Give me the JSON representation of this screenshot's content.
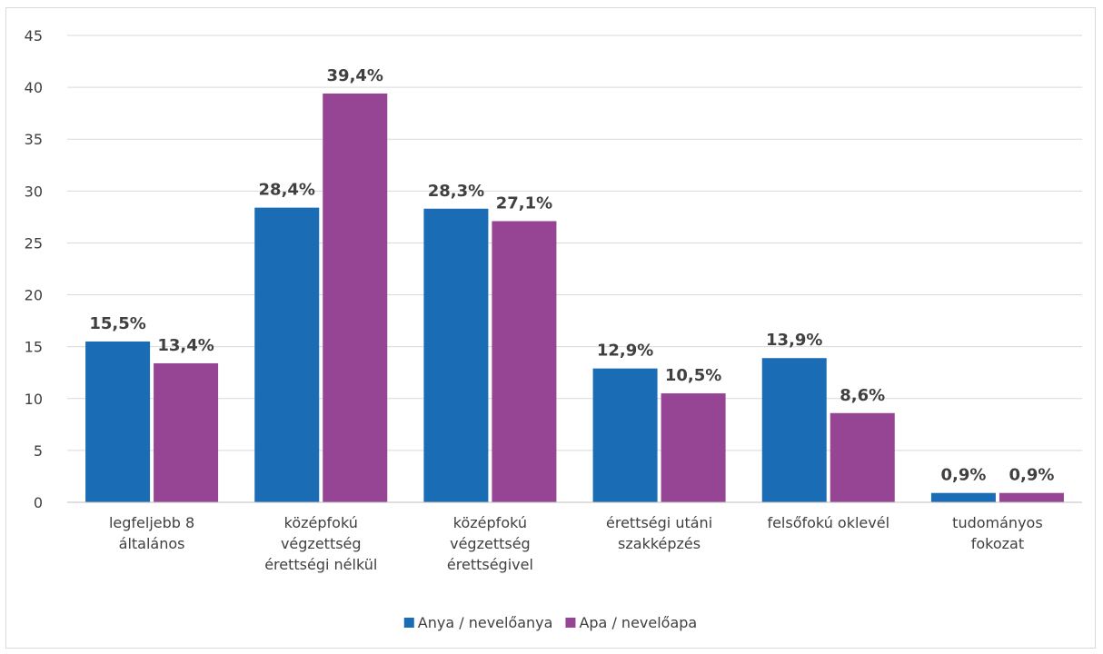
{
  "chart_data": {
    "type": "bar",
    "title": "",
    "xlabel": "",
    "ylabel": "",
    "ylim": [
      0,
      45
    ],
    "yticks": [
      0,
      5,
      10,
      15,
      20,
      25,
      30,
      35,
      40,
      45
    ],
    "grid": true,
    "legend_position": "bottom",
    "categories": [
      [
        "legfeljebb 8",
        "általános"
      ],
      [
        "középfokú",
        "végzettség",
        "érettségi nélkül"
      ],
      [
        "középfokú",
        "végzettség",
        "érettségivel"
      ],
      [
        "érettségi utáni",
        "szakképzés"
      ],
      [
        "felsőfokú oklevél"
      ],
      [
        "tudományos",
        "fokozat"
      ]
    ],
    "series": [
      {
        "name": "Anya / nevelőanya",
        "color": "#1a6cb5",
        "values": [
          15.5,
          28.4,
          28.3,
          12.9,
          13.9,
          0.9
        ],
        "labels": [
          "15,5%",
          "28,4%",
          "28,3%",
          "12,9%",
          "13,9%",
          "0,9%"
        ]
      },
      {
        "name": "Apa / nevelőapa",
        "color": "#954593",
        "values": [
          13.4,
          39.4,
          27.1,
          10.5,
          8.6,
          0.9
        ],
        "labels": [
          "13,4%",
          "39,4%",
          "27,1%",
          "10,5%",
          "8,6%",
          "0,9%"
        ]
      }
    ]
  }
}
